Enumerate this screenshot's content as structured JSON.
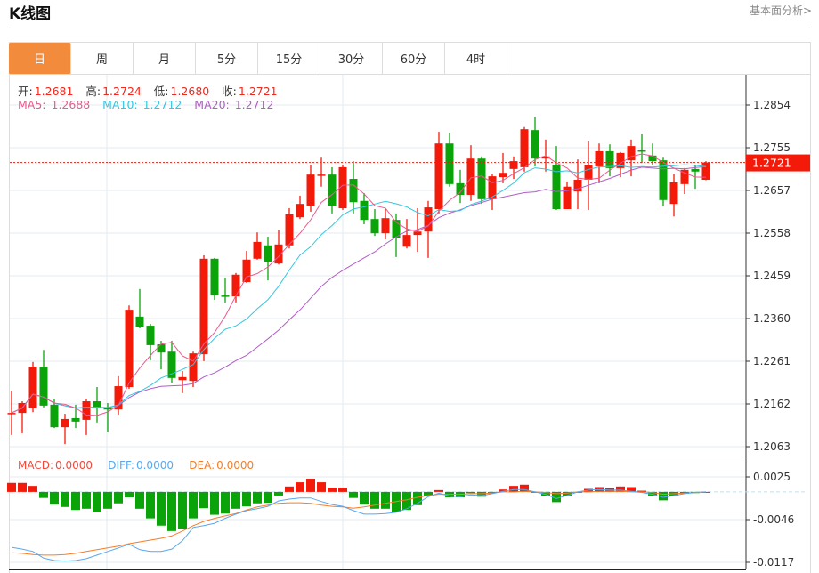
{
  "header": {
    "title": "K线图",
    "more_link": "基本面分析>"
  },
  "tabs": [
    {
      "label": "日",
      "active": true
    },
    {
      "label": "周"
    },
    {
      "label": "月"
    },
    {
      "label": "5分"
    },
    {
      "label": "15分"
    },
    {
      "label": "30分"
    },
    {
      "label": "60分"
    },
    {
      "label": "4时"
    }
  ],
  "ohlc_info": {
    "open_label": "开:",
    "open": "1.2681",
    "high_label": "高:",
    "high": "1.2724",
    "low_label": "低:",
    "low": "1.2680",
    "close_label": "收:",
    "close": "1.2721"
  },
  "ma_info": {
    "ma5_label": "MA5:",
    "ma5": "1.2688",
    "ma10_label": "MA10:",
    "ma10": "1.2712",
    "ma20_label": "MA20:",
    "ma20": "1.2712"
  },
  "macd_info": {
    "macd_label": "MACD:",
    "macd": "0.0000",
    "diff_label": "DIFF:",
    "diff": "0.0000",
    "dea_label": "DEA:",
    "dea": "0.0000"
  },
  "colors": {
    "up": "#f31a0a",
    "down": "#0aa30a",
    "ma5": "#ea5a8c",
    "ma10": "#35c6e0",
    "ma20": "#b35cc8",
    "diff": "#58a8f0",
    "dea": "#f57d28",
    "accent": "#f28c3c"
  },
  "chart_data": [
    {
      "type": "candlestick",
      "title": "K线图",
      "ylim": [
        1.2063,
        1.2854
      ],
      "y_ticks": [
        "1.2854",
        "1.2755",
        "1.2657",
        "1.2558",
        "1.2459",
        "1.2360",
        "1.2261",
        "1.2162",
        "1.2063"
      ],
      "last_price_label": "1.2721",
      "last_price": 1.2721,
      "candles": [
        [
          1.2139,
          1.2191,
          1.209,
          1.2141
        ],
        [
          1.2141,
          1.2168,
          1.2094,
          1.2164
        ],
        [
          1.2152,
          1.2259,
          1.2143,
          1.2248
        ],
        [
          1.2248,
          1.2287,
          1.2154,
          1.2158
        ],
        [
          1.216,
          1.2174,
          1.2106,
          1.2108
        ],
        [
          1.2108,
          1.2139,
          1.2069,
          1.2127
        ],
        [
          1.2129,
          1.216,
          1.2106,
          1.2121
        ],
        [
          1.2125,
          1.2174,
          1.209,
          1.2168
        ],
        [
          1.2168,
          1.2201,
          1.2119,
          1.2152
        ],
        [
          1.2154,
          1.2164,
          1.2096,
          1.2149
        ],
        [
          1.2149,
          1.2226,
          1.2137,
          1.2203
        ],
        [
          1.2201,
          1.239,
          1.2197,
          1.238
        ],
        [
          1.2364,
          1.2428,
          1.2337,
          1.2341
        ],
        [
          1.2343,
          1.2347,
          1.2263,
          1.2298
        ],
        [
          1.23,
          1.2308,
          1.2242,
          1.2281
        ],
        [
          1.2283,
          1.2308,
          1.2211,
          1.2222
        ],
        [
          1.2217,
          1.2238,
          1.2187,
          1.2224
        ],
        [
          1.2215,
          1.2283,
          1.2201,
          1.2279
        ],
        [
          1.2277,
          1.2506,
          1.2261,
          1.2498
        ],
        [
          1.2498,
          1.25,
          1.2403,
          1.2413
        ],
        [
          1.2413,
          1.2454,
          1.2397,
          1.2411
        ],
        [
          1.2411,
          1.2465,
          1.2397,
          1.2461
        ],
        [
          1.2444,
          1.2516,
          1.2442,
          1.2496
        ],
        [
          1.2498,
          1.2559,
          1.2496,
          1.2537
        ],
        [
          1.2529,
          1.2549,
          1.2448,
          1.2491
        ],
        [
          1.2487,
          1.2564,
          1.2485,
          1.2531
        ],
        [
          1.2529,
          1.2615,
          1.2522,
          1.2601
        ],
        [
          1.2594,
          1.2644,
          1.259,
          1.2625
        ],
        [
          1.2621,
          1.2714,
          1.2607,
          1.2693
        ],
        [
          1.2691,
          1.2732,
          1.2665,
          1.2693
        ],
        [
          1.2693,
          1.271,
          1.2603,
          1.2621
        ],
        [
          1.2615,
          1.2716,
          1.2611,
          1.271
        ],
        [
          1.2683,
          1.2724,
          1.2603,
          1.2629
        ],
        [
          1.2632,
          1.265,
          1.2578,
          1.2588
        ],
        [
          1.259,
          1.2613,
          1.2551,
          1.2557
        ],
        [
          1.2557,
          1.2613,
          1.2543,
          1.2592
        ],
        [
          1.2588,
          1.2603,
          1.2502,
          1.2545
        ],
        [
          1.2526,
          1.259,
          1.2522,
          1.2553
        ],
        [
          1.2553,
          1.2615,
          1.2514,
          1.2561
        ],
        [
          1.2561,
          1.2632,
          1.25,
          1.2617
        ],
        [
          1.2613,
          1.2792,
          1.2603,
          1.2765
        ],
        [
          1.2765,
          1.279,
          1.2665,
          1.2671
        ],
        [
          1.2673,
          1.2704,
          1.2627,
          1.2646
        ],
        [
          1.2646,
          1.2761,
          1.2632,
          1.273
        ],
        [
          1.273,
          1.2735,
          1.2625,
          1.2636
        ],
        [
          1.2636,
          1.2695,
          1.2611,
          1.2689
        ],
        [
          1.2687,
          1.2743,
          1.2673,
          1.2697
        ],
        [
          1.2706,
          1.2735,
          1.2683,
          1.2724
        ],
        [
          1.271,
          1.2803,
          1.27,
          1.2798
        ],
        [
          1.2796,
          1.2827,
          1.2712,
          1.273
        ],
        [
          1.273,
          1.2774,
          1.27,
          1.2735
        ],
        [
          1.2716,
          1.2759,
          1.2611,
          1.2613
        ],
        [
          1.2613,
          1.2677,
          1.2613,
          1.2665
        ],
        [
          1.2654,
          1.2728,
          1.2613,
          1.2681
        ],
        [
          1.2681,
          1.277,
          1.2611,
          1.2716
        ],
        [
          1.2712,
          1.2765,
          1.2673,
          1.2747
        ],
        [
          1.2747,
          1.2763,
          1.2689,
          1.2708
        ],
        [
          1.2708,
          1.2745,
          1.2687,
          1.2743
        ],
        [
          1.2726,
          1.2774,
          1.2689,
          1.2759
        ],
        [
          1.2749,
          1.2786,
          1.272,
          1.2747
        ],
        [
          1.2737,
          1.2765,
          1.2714,
          1.2724
        ],
        [
          1.2726,
          1.2732,
          1.2619,
          1.2634
        ],
        [
          1.2625,
          1.2695,
          1.2596,
          1.2675
        ],
        [
          1.2671,
          1.2708,
          1.2648,
          1.2704
        ],
        [
          1.2706,
          1.2716,
          1.266,
          1.27
        ],
        [
          1.2681,
          1.2724,
          1.268,
          1.2721
        ]
      ]
    },
    {
      "type": "bar+line",
      "title": "MACD",
      "ylim": [
        -0.0117,
        0.0025
      ],
      "y_ticks": [
        "0.0025",
        "-0.0046",
        "-0.0117"
      ],
      "macd": [
        0.0015,
        0.0015,
        0.001,
        -0.001,
        -0.0021,
        -0.0025,
        -0.003,
        -0.0028,
        -0.0033,
        -0.0028,
        -0.0019,
        -0.0009,
        -0.0028,
        -0.0044,
        -0.0056,
        -0.0065,
        -0.0061,
        -0.0044,
        -0.0027,
        -0.0038,
        -0.0036,
        -0.0028,
        -0.0024,
        -0.0019,
        -0.0018,
        -0.0006,
        0.0009,
        0.0016,
        0.0022,
        0.0016,
        0.0007,
        0.0007,
        -0.001,
        -0.0021,
        -0.0028,
        -0.0028,
        -0.0034,
        -0.003,
        -0.0022,
        -0.0006,
        0.0003,
        -0.0009,
        -0.0009,
        -0.0002,
        -0.0008,
        -0.0001,
        0.0004,
        0.001,
        0.0012,
        -0.0001,
        -0.0007,
        -0.0017,
        -0.0007,
        -0.0001,
        0.0005,
        0.0008,
        0.0006,
        0.0009,
        0.0008,
        0.0002,
        -0.0007,
        -0.0014,
        -0.0007,
        -0.0003,
        -0.0002,
        0.0
      ],
      "diff": [
        -0.0092,
        -0.0095,
        -0.0099,
        -0.011,
        -0.0114,
        -0.0115,
        -0.0114,
        -0.0111,
        -0.0105,
        -0.0099,
        -0.0093,
        -0.0087,
        -0.0096,
        -0.0099,
        -0.0099,
        -0.0095,
        -0.0081,
        -0.0059,
        -0.0056,
        -0.0052,
        -0.0044,
        -0.0037,
        -0.0031,
        -0.0028,
        -0.0024,
        -0.0015,
        -0.0012,
        -0.001,
        -0.001,
        -0.0016,
        -0.0021,
        -0.0024,
        -0.0031,
        -0.0037,
        -0.0037,
        -0.0036,
        -0.0034,
        -0.0028,
        -0.0019,
        -0.0008,
        -0.0002,
        -0.0007,
        -0.0008,
        -0.0005,
        -0.0006,
        -0.0003,
        0.0001,
        0.0004,
        0.0004,
        0.0,
        -0.0004,
        -0.0011,
        -0.0006,
        0.0,
        0.0003,
        0.0004,
        0.0003,
        0.0003,
        0.0001,
        -0.0001,
        -0.0004,
        -0.0009,
        -0.0006,
        -0.0003,
        -0.0001,
        0.0
      ],
      "dea": [
        -0.0101,
        -0.0102,
        -0.0104,
        -0.0105,
        -0.0105,
        -0.0104,
        -0.0102,
        -0.0099,
        -0.0096,
        -0.0093,
        -0.009,
        -0.0086,
        -0.0083,
        -0.008,
        -0.0077,
        -0.0073,
        -0.0065,
        -0.0056,
        -0.0049,
        -0.0044,
        -0.004,
        -0.0036,
        -0.003,
        -0.0025,
        -0.0022,
        -0.0019,
        -0.0018,
        -0.0018,
        -0.0019,
        -0.0022,
        -0.0024,
        -0.0025,
        -0.0027,
        -0.0025,
        -0.0022,
        -0.0019,
        -0.0016,
        -0.0013,
        -0.0009,
        -0.0006,
        -0.0004,
        -0.0004,
        -0.0004,
        -0.0003,
        -0.0003,
        -0.0002,
        0.0,
        0.0,
        0.0001,
        0.0,
        -0.0001,
        -0.0003,
        -0.0002,
        0.0,
        0.0,
        0.0001,
        0.0001,
        0.0001,
        0.0,
        0.0,
        -0.0001,
        -0.0004,
        -0.0003,
        -0.0002,
        -0.0001,
        0.0
      ]
    }
  ]
}
